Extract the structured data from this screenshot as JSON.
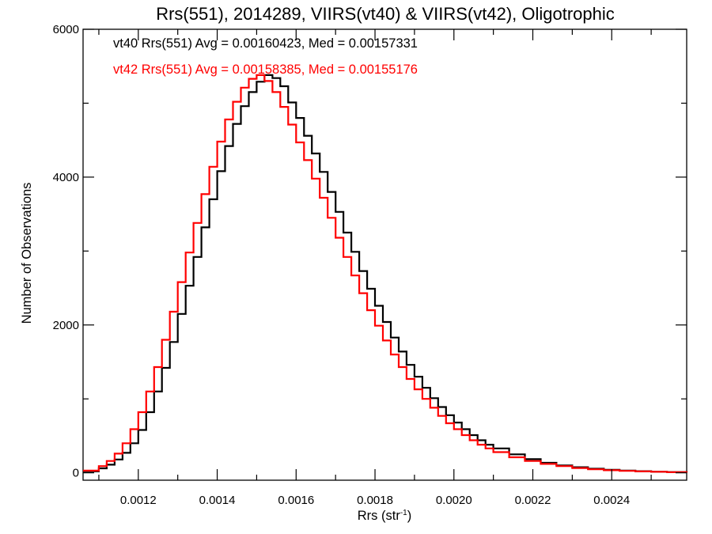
{
  "chart_data": {
    "type": "line",
    "title": "Rrs(551), 2014289, VIIRS(vt40) & VIIRS(vt42), Oligotrophic",
    "xlabel": "Rrs (str",
    "xlabel_sup": "-1",
    "xlabel_close": ")",
    "ylabel": "Number of Observations",
    "xlim": [
      0.00106,
      0.00259
    ],
    "ylim": [
      -100,
      6000
    ],
    "x_ticks": [
      0.0012,
      0.0014,
      0.0016,
      0.0018,
      0.002,
      0.0022,
      0.0024
    ],
    "x_tick_labels": [
      "0.0012",
      "0.0014",
      "0.0016",
      "0.0018",
      "0.0020",
      "0.0022",
      "0.0024"
    ],
    "x_minor_ticks": [
      0.0011,
      0.0013,
      0.0015,
      0.0017,
      0.0019,
      0.0021,
      0.0023,
      0.0025
    ],
    "y_ticks": [
      0,
      2000,
      4000,
      6000
    ],
    "y_tick_labels": [
      "0",
      "2000",
      "4000",
      "6000"
    ],
    "y_minor_ticks": [
      1000,
      3000,
      5000
    ],
    "grid": false,
    "plot_style": "step",
    "annotations": [
      {
        "text": "vt40 Rrs(551) Avg = 0.00160423, Med = 0.00157331",
        "color": "#000000"
      },
      {
        "text": "vt42 Rrs(551) Avg = 0.00158385, Med = 0.00155176",
        "color": "#ff0000"
      }
    ],
    "series": [
      {
        "color": "#000000",
        "x": [
          0.00106,
          0.0011,
          0.00112,
          0.00114,
          0.00116,
          0.00118,
          0.0012,
          0.00122,
          0.00124,
          0.00126,
          0.00128,
          0.0013,
          0.00132,
          0.00134,
          0.00136,
          0.00138,
          0.0014,
          0.00142,
          0.00144,
          0.00146,
          0.00148,
          0.0015,
          0.00152,
          0.00154,
          0.00156,
          0.00158,
          0.0016,
          0.00162,
          0.00164,
          0.00166,
          0.00168,
          0.0017,
          0.00172,
          0.00174,
          0.00176,
          0.00178,
          0.0018,
          0.00182,
          0.00184,
          0.00186,
          0.00188,
          0.0019,
          0.00192,
          0.00194,
          0.00196,
          0.00198,
          0.002,
          0.00202,
          0.00204,
          0.00206,
          0.00208,
          0.0021,
          0.00214,
          0.00218,
          0.00222,
          0.00226,
          0.0023,
          0.00234,
          0.00238,
          0.00242,
          0.00246,
          0.0025,
          0.00254,
          0.00259
        ],
        "values": [
          20,
          60,
          110,
          180,
          270,
          400,
          580,
          820,
          1100,
          1420,
          1770,
          2150,
          2530,
          2920,
          3320,
          3700,
          4080,
          4420,
          4720,
          4960,
          5150,
          5290,
          5380,
          5340,
          5230,
          5010,
          4800,
          4560,
          4320,
          4070,
          3800,
          3530,
          3250,
          2990,
          2730,
          2490,
          2260,
          2040,
          1830,
          1640,
          1460,
          1300,
          1150,
          1010,
          890,
          780,
          680,
          590,
          510,
          440,
          380,
          330,
          250,
          185,
          135,
          100,
          75,
          55,
          40,
          30,
          22,
          15,
          10,
          5
        ]
      },
      {
        "color": "#ff0000",
        "x": [
          0.00106,
          0.0011,
          0.00112,
          0.00114,
          0.00116,
          0.00118,
          0.0012,
          0.00122,
          0.00124,
          0.00126,
          0.00128,
          0.0013,
          0.00132,
          0.00134,
          0.00136,
          0.00138,
          0.0014,
          0.00142,
          0.00144,
          0.00146,
          0.00148,
          0.0015,
          0.00152,
          0.00154,
          0.00156,
          0.00158,
          0.0016,
          0.00162,
          0.00164,
          0.00166,
          0.00168,
          0.0017,
          0.00172,
          0.00174,
          0.00176,
          0.00178,
          0.0018,
          0.00182,
          0.00184,
          0.00186,
          0.00188,
          0.0019,
          0.00192,
          0.00194,
          0.00196,
          0.00198,
          0.002,
          0.00202,
          0.00204,
          0.00206,
          0.00208,
          0.0021,
          0.00214,
          0.00218,
          0.00222,
          0.00226,
          0.0023,
          0.00234,
          0.00238,
          0.00242,
          0.00246,
          0.0025,
          0.00254,
          0.00259
        ],
        "values": [
          30,
          90,
          160,
          260,
          400,
          590,
          820,
          1100,
          1430,
          1800,
          2180,
          2580,
          2980,
          3380,
          3770,
          4140,
          4480,
          4780,
          5020,
          5210,
          5330,
          5380,
          5300,
          5150,
          4950,
          4710,
          4470,
          4230,
          3980,
          3720,
          3450,
          3180,
          2920,
          2670,
          2430,
          2200,
          1990,
          1790,
          1600,
          1430,
          1270,
          1130,
          1000,
          880,
          770,
          670,
          590,
          510,
          440,
          380,
          330,
          280,
          210,
          160,
          120,
          90,
          65,
          48,
          35,
          26,
          20,
          14,
          9,
          4
        ]
      }
    ]
  }
}
